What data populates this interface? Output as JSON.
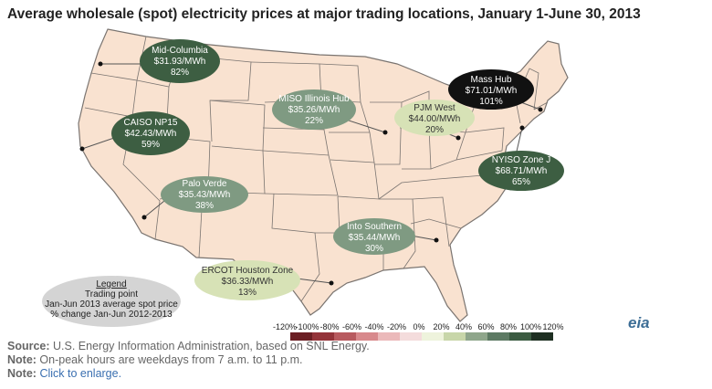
{
  "title": "Average wholesale (spot) electricity prices at major trading locations, January 1-June 30, 2013",
  "colors": {
    "land": "#f9e2d0",
    "state_border": "#7a7470",
    "bubble_light": "#d7e2b6",
    "bubble_mid": "#7f9a82",
    "bubble_dark": "#3d5e42",
    "bubble_black": "#111111"
  },
  "hubs": [
    {
      "name": "Mid-Columbia",
      "price": "$31.93/MWh",
      "change": "82%",
      "shade": "dark"
    },
    {
      "name": "CAISO NP15",
      "price": "$42.43/MWh",
      "change": "59%",
      "shade": "dark"
    },
    {
      "name": "Palo Verde",
      "price": "$35.43/MWh",
      "change": "38%",
      "shade": "mid"
    },
    {
      "name": "MISO Illinois Hub",
      "price": "$35.26/MWh",
      "change": "22%",
      "shade": "mid"
    },
    {
      "name": "PJM West",
      "price": "$44.00/MWh",
      "change": "20%",
      "shade": "light"
    },
    {
      "name": "Mass Hub",
      "price": "$71.01/MWh",
      "change": "101%",
      "shade": "black"
    },
    {
      "name": "NYISO Zone J",
      "price": "$68.71/MWh",
      "change": "65%",
      "shade": "dark"
    },
    {
      "name": "Into Southern",
      "price": "$35.44/MWh",
      "change": "30%",
      "shade": "mid"
    },
    {
      "name": "ERCOT Houston Zone",
      "price": "$36.33/MWh",
      "change": "13%",
      "shade": "light"
    }
  ],
  "legend": {
    "heading": "Legend",
    "lines": [
      "Trading point",
      "Jan-Jun 2013  average spot price",
      "% change Jan-Jun 2012-2013"
    ],
    "scale_labels": [
      "-120%",
      "-100%",
      "-80%",
      "-60%",
      "-40%",
      "-20%",
      "0%",
      "20%",
      "40%",
      "60%",
      "80%",
      "100%",
      "120%"
    ],
    "scale_colors": [
      "#6b1f24",
      "#94343a",
      "#b85a5f",
      "#d8898c",
      "#ebb9ba",
      "#f4dcdc",
      "#eef3dc",
      "#c8d6a9",
      "#8fa68b",
      "#5d7a63",
      "#3b5b41",
      "#1e2f22",
      "#000000"
    ]
  },
  "footer": {
    "source_label": "Source:",
    "source_text": " U.S. Energy Information Administration, based on SNL Energy.",
    "note1_label": "Note:",
    "note1_text": " On-peak hours are weekdays from 7 a.m. to 11 p.m.",
    "note2_label": "Note:",
    "note2_text": "Click to enlarge."
  },
  "logo": "eia"
}
